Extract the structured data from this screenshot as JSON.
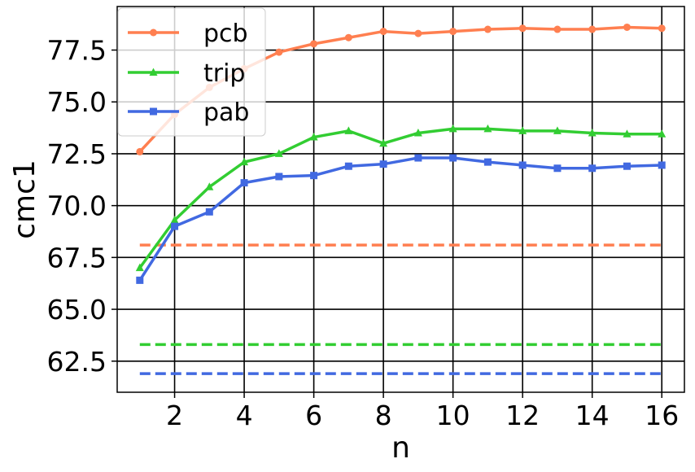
{
  "chart_data": {
    "type": "line",
    "xlabel": "n",
    "ylabel": "cmc1",
    "xlim": [
      0.35,
      16.65
    ],
    "ylim": [
      61.0,
      79.6
    ],
    "x_ticks": [
      2,
      4,
      6,
      8,
      10,
      12,
      14,
      16
    ],
    "x_tick_labels": [
      "2",
      "4",
      "6",
      "8",
      "10",
      "12",
      "14",
      "16"
    ],
    "y_ticks": [
      62.5,
      65.0,
      67.5,
      70.0,
      72.5,
      75.0,
      77.5
    ],
    "y_tick_labels": [
      "62.5",
      "65.0",
      "67.5",
      "70.0",
      "72.5",
      "75.0",
      "77.5"
    ],
    "grid": true,
    "legend_position": "top-left",
    "x": [
      1,
      2,
      3,
      4,
      5,
      6,
      7,
      8,
      9,
      10,
      11,
      12,
      13,
      14,
      15,
      16
    ],
    "series": [
      {
        "name": "pcb",
        "color": "#FF7F50",
        "marker": "circle",
        "values": [
          72.6,
          74.4,
          75.7,
          76.6,
          77.4,
          77.8,
          78.1,
          78.4,
          78.3,
          78.4,
          78.5,
          78.55,
          78.5,
          78.5,
          78.6,
          78.55
        ],
        "baseline": 68.1
      },
      {
        "name": "trip",
        "color": "#32CD32",
        "marker": "triangle",
        "values": [
          67.0,
          69.3,
          70.9,
          72.1,
          72.5,
          73.3,
          73.6,
          73.0,
          73.5,
          73.7,
          73.7,
          73.6,
          73.6,
          73.5,
          73.45,
          73.45
        ],
        "baseline": 63.3
      },
      {
        "name": "pab",
        "color": "#4169E1",
        "marker": "square",
        "values": [
          66.4,
          69.0,
          69.7,
          71.1,
          71.4,
          71.45,
          71.9,
          72.0,
          72.3,
          72.3,
          72.1,
          71.95,
          71.8,
          71.8,
          71.9,
          71.95
        ],
        "baseline": 61.9
      }
    ]
  }
}
